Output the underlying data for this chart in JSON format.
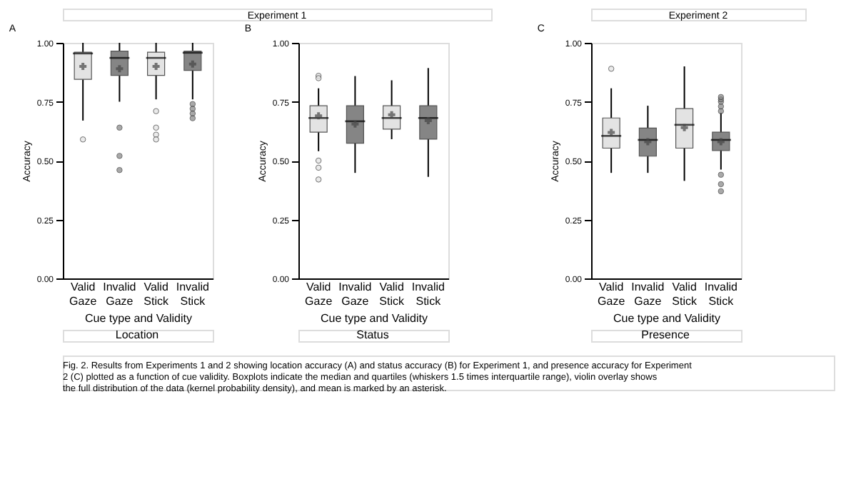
{
  "chart_data": [
    {
      "type": "box",
      "title": "A",
      "subtitle": "Location",
      "xlabel": "Cue type and Validity",
      "ylabel": "Accuracy",
      "annotations": [
        "Experiment 1"
      ],
      "categories": [
        "Valid Gaze",
        "Invalid Gaze",
        "Valid Stick",
        "Invalid Stick"
      ],
      "colors": [
        "#e3e3e3",
        "#858585",
        "#e3e3e3",
        "#858585"
      ],
      "ylim": [
        0,
        1
      ],
      "yticks": [
        {
          "value": 0,
          "label": "0.00"
        },
        {
          "value": 0.25,
          "label": "0.25"
        },
        {
          "value": 0.5,
          "label": "0.50"
        },
        {
          "value": 0.75,
          "label": "0.75"
        },
        {
          "value": 1,
          "label": "1.00"
        }
      ],
      "boxes": [
        {
          "low": 0.67,
          "q1": 0.845,
          "median": 0.955,
          "q3": 0.96,
          "high": 1.0,
          "mean": 0.9,
          "outliers": [
            0.59
          ]
        },
        {
          "low": 0.75,
          "q1": 0.862,
          "median": 0.936,
          "q3": 0.965,
          "high": 1.0,
          "mean": 0.89,
          "outliers": [
            0.64,
            0.52,
            0.46
          ]
        },
        {
          "low": 0.76,
          "q1": 0.862,
          "median": 0.936,
          "q3": 0.96,
          "high": 1.0,
          "mean": 0.9,
          "outliers": [
            0.71,
            0.64,
            0.61,
            0.59
          ]
        },
        {
          "low": 0.76,
          "q1": 0.883,
          "median": 0.958,
          "q3": 0.965,
          "high": 1.0,
          "mean": 0.91,
          "outliers": [
            0.74,
            0.72,
            0.7,
            0.68
          ]
        }
      ]
    },
    {
      "type": "box",
      "title": "B",
      "subtitle": "Status",
      "xlabel": "Cue type and Validity",
      "ylabel": "Accuracy",
      "categories": [
        "Valid Gaze",
        "Invalid Gaze",
        "Valid Stick",
        "Invalid Stick"
      ],
      "colors": [
        "#e3e3e3",
        "#858585",
        "#e3e3e3",
        "#858585"
      ],
      "ylim": [
        0,
        1
      ],
      "yticks": [
        {
          "value": 0,
          "label": "0.00"
        },
        {
          "value": 0.25,
          "label": "0.25"
        },
        {
          "value": 0.5,
          "label": "0.50"
        },
        {
          "value": 0.75,
          "label": "0.75"
        },
        {
          "value": 1,
          "label": "1.00"
        }
      ],
      "boxes": [
        {
          "low": 0.54,
          "q1": 0.621,
          "median": 0.681,
          "q3": 0.733,
          "high": 0.807,
          "mean": 0.69,
          "outliers": [
            0.86,
            0.85,
            0.5,
            0.47,
            0.42
          ]
        },
        {
          "low": 0.448,
          "q1": 0.574,
          "median": 0.667,
          "q3": 0.733,
          "high": 0.859,
          "mean": 0.655
        },
        {
          "low": 0.591,
          "q1": 0.634,
          "median": 0.681,
          "q3": 0.733,
          "high": 0.841,
          "mean": 0.695
        },
        {
          "low": 0.431,
          "q1": 0.591,
          "median": 0.681,
          "q3": 0.733,
          "high": 0.893,
          "mean": 0.67
        }
      ]
    },
    {
      "type": "box",
      "title": "C",
      "subtitle": "Presence",
      "xlabel": "Cue type and Validity",
      "ylabel": "Accuracy",
      "annotations": [
        "Experiment 2",
        "Fig. 2. Results from Experiments 1 and 2 showing location accuracy (A) and status accuracy (B) for Experiment 1, and presence accuracy for Experiment 2 (C) plotted as a function of cue validity. Boxplots indicate the median and quartiles (whiskers 1.5 times interquartile range), violin overlay shows the full distribution of the data (kernel probability density), and mean is marked by an asterisk."
      ],
      "categories": [
        "Valid Gaze",
        "Invalid Gaze",
        "Valid Stick",
        "Invalid Stick"
      ],
      "colors": [
        "#e3e3e3",
        "#858585",
        "#e3e3e3",
        "#858585"
      ],
      "ylim": [
        0,
        1
      ],
      "yticks": [
        {
          "value": 0,
          "label": "0.00"
        },
        {
          "value": 0.25,
          "label": "0.25"
        },
        {
          "value": 0.5,
          "label": "0.50"
        },
        {
          "value": 0.75,
          "label": "0.75"
        },
        {
          "value": 1,
          "label": "1.00"
        }
      ],
      "boxes": [
        {
          "low": 0.448,
          "q1": 0.553,
          "median": 0.605,
          "q3": 0.681,
          "high": 0.807,
          "mean": 0.62,
          "outliers": [
            0.89
          ]
        },
        {
          "low": 0.448,
          "q1": 0.519,
          "median": 0.588,
          "q3": 0.638,
          "high": 0.733,
          "mean": 0.58
        },
        {
          "low": 0.414,
          "q1": 0.553,
          "median": 0.652,
          "q3": 0.721,
          "high": 0.9,
          "mean": 0.64
        },
        {
          "low": 0.462,
          "q1": 0.543,
          "median": 0.588,
          "q3": 0.621,
          "high": 0.703,
          "mean": 0.58,
          "outliers": [
            0.71,
            0.73,
            0.75,
            0.76,
            0.77,
            0.44,
            0.4,
            0.37
          ]
        }
      ]
    }
  ]
}
